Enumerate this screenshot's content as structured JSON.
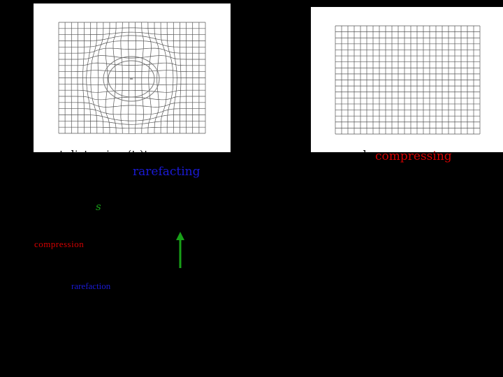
{
  "left_panel": {
    "caption": "t  distorsion  (t           )t"
  },
  "right_panel": {
    "caption": "a     b"
  },
  "labels": {
    "compressing": "compressing",
    "rarefacting": "rarefacting",
    "s": "s",
    "compression": "compression",
    "rarefaction": "rarefaction"
  },
  "colors": {
    "compression": "#d40000",
    "rarefaction": "#1a1ad6",
    "s_arrow": "#18a018"
  },
  "icons": {
    "arrow": "up-arrow-icon"
  }
}
